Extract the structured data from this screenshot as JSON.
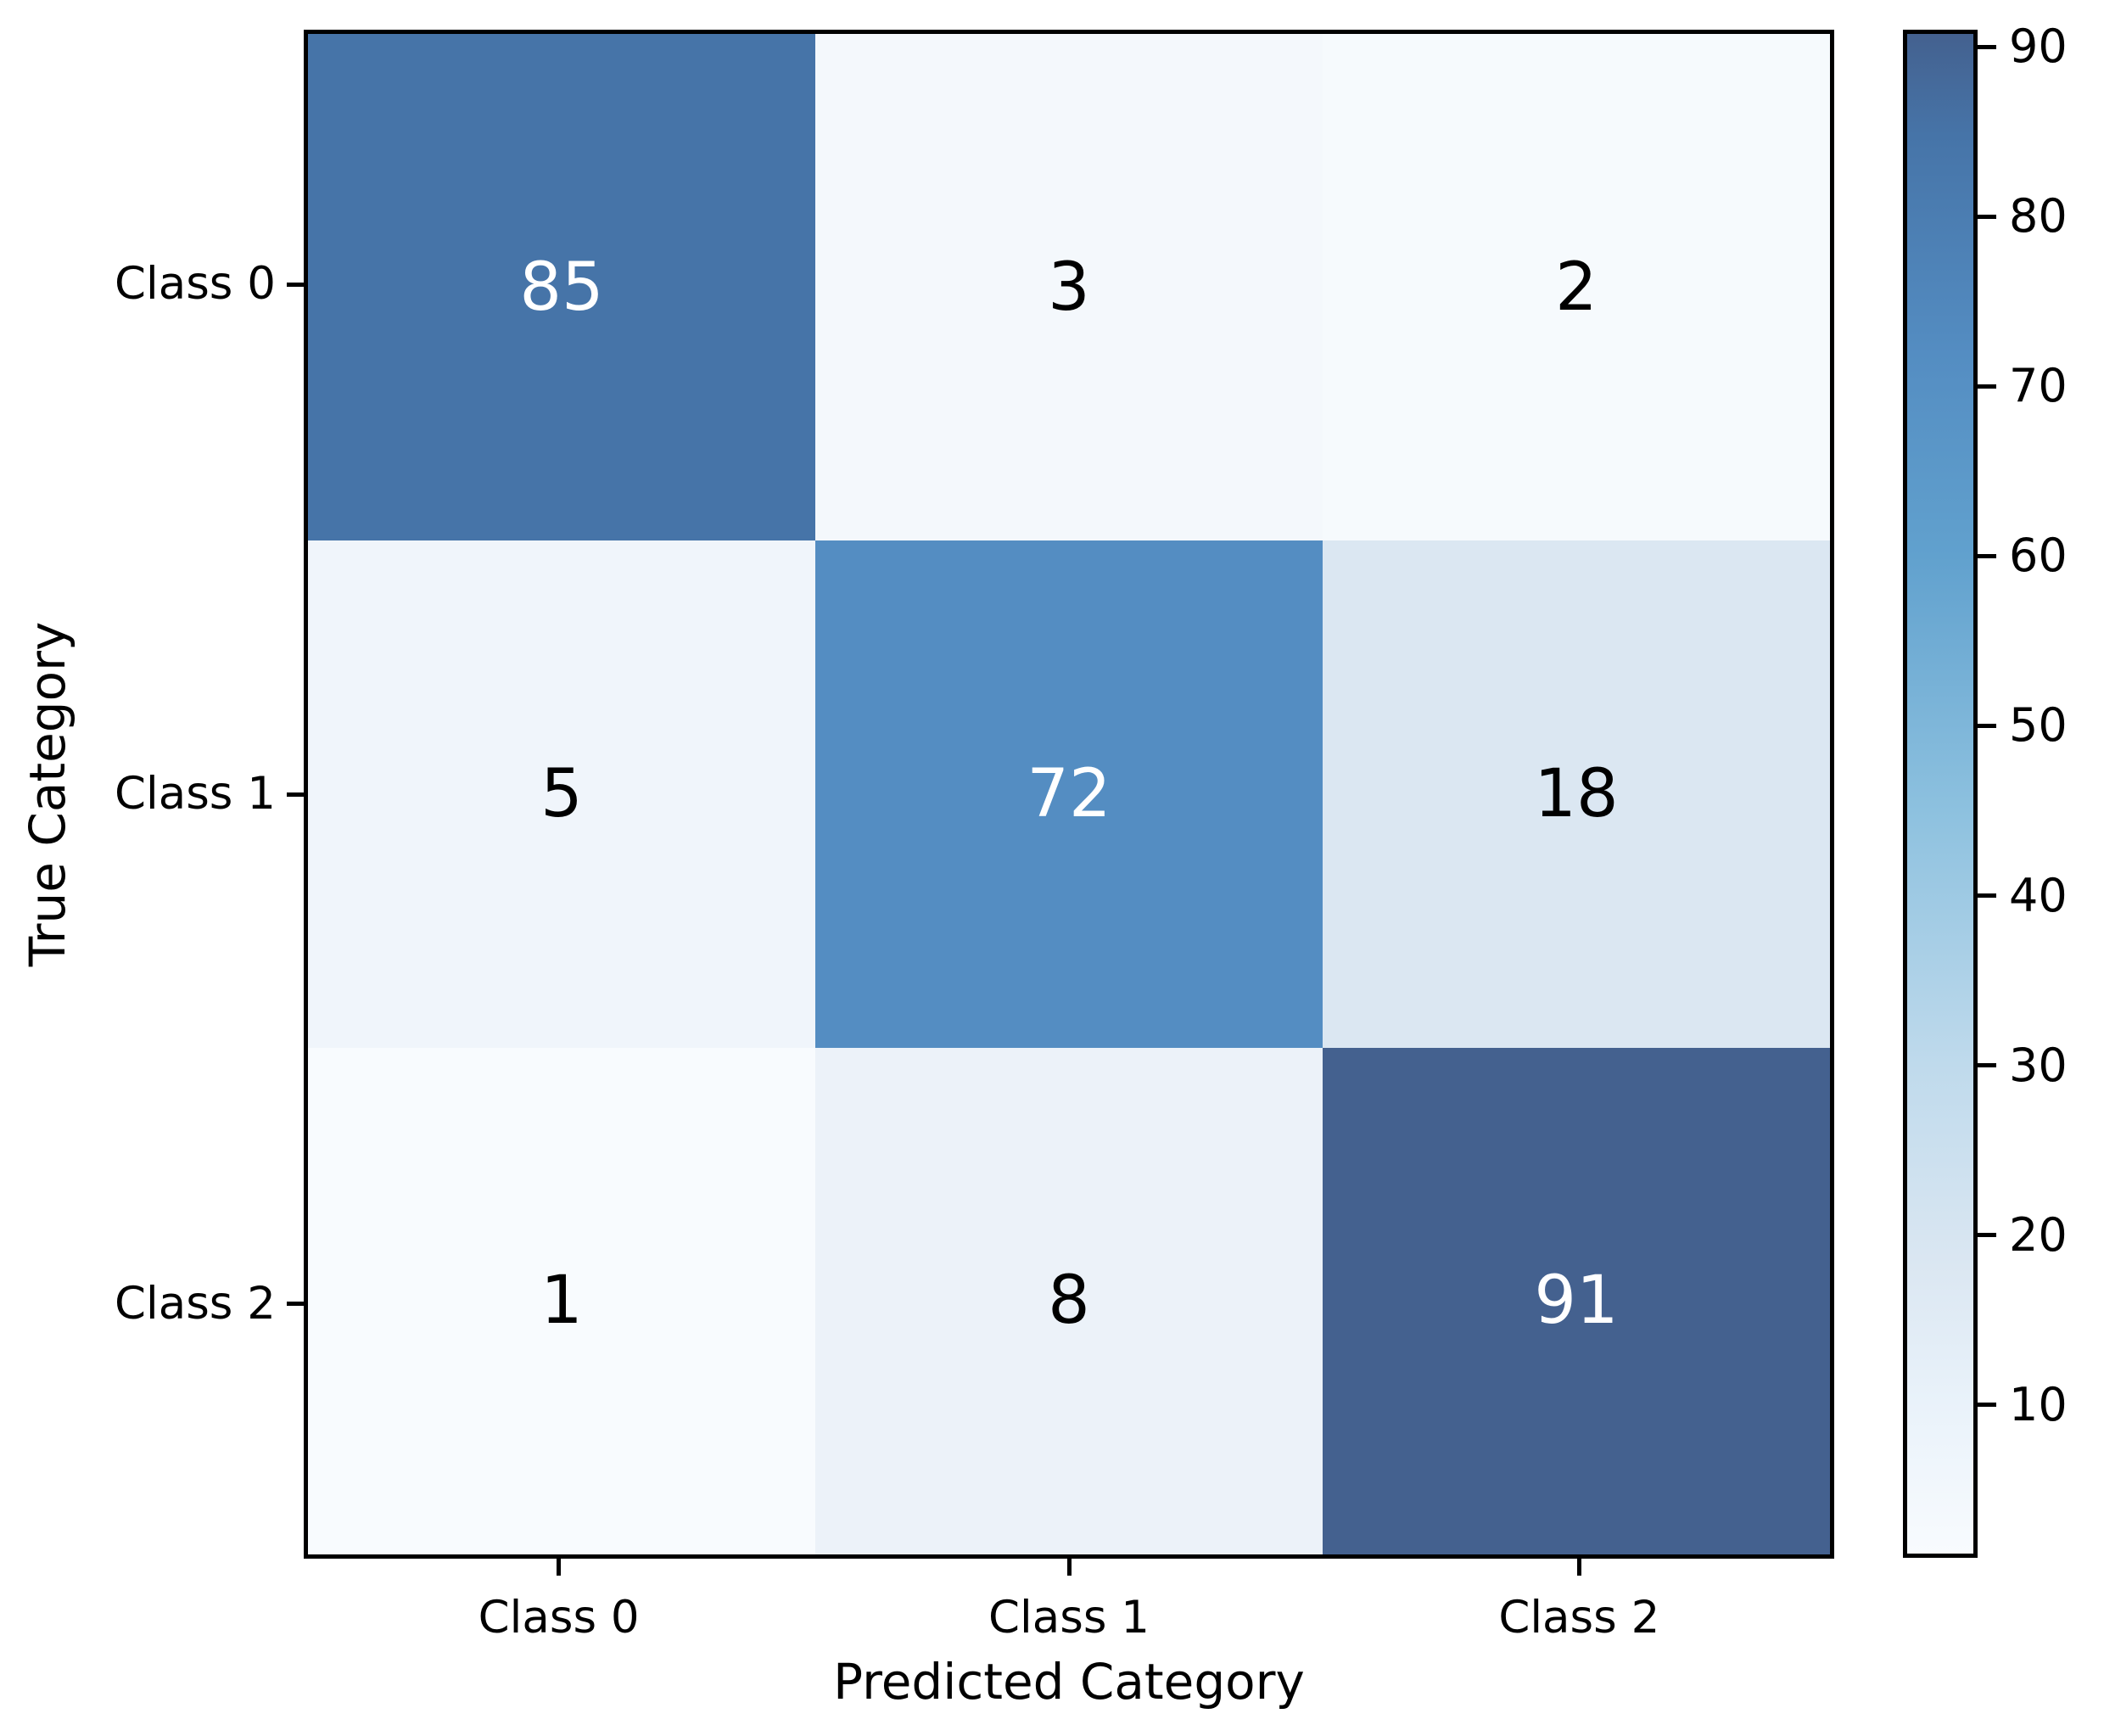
{
  "chart_data": {
    "type": "heatmap",
    "title": "",
    "xlabel": "Predicted Category",
    "ylabel": "True Category",
    "x_categories": [
      "Class 0",
      "Class 1",
      "Class 2"
    ],
    "y_categories": [
      "Class 0",
      "Class 1",
      "Class 2"
    ],
    "matrix": [
      [
        85,
        3,
        2
      ],
      [
        5,
        72,
        18
      ],
      [
        1,
        8,
        91
      ]
    ],
    "cell_colors": [
      [
        "#4674A8",
        "#F4F8FC",
        "#F6FAFD"
      ],
      [
        "#F0F5FB",
        "#548DC2",
        "#DBE7F2"
      ],
      [
        "#F8FBFE",
        "#ECF2F9",
        "#44618F"
      ]
    ],
    "cell_text_colors": [
      [
        "#FFFFFF",
        "#000000",
        "#000000"
      ],
      [
        "#000000",
        "#FFFFFF",
        "#000000"
      ],
      [
        "#000000",
        "#000000",
        "#FFFFFF"
      ]
    ],
    "grid": false,
    "legend_position": "none",
    "colorbar": {
      "vmin": 1,
      "vmax": 91,
      "tick_labels": [
        "10",
        "20",
        "30",
        "40",
        "50",
        "60",
        "70",
        "80",
        "90"
      ],
      "tick_values": [
        10,
        20,
        30,
        40,
        50,
        60,
        70,
        80,
        90
      ],
      "gradient_stops": [
        {
          "value": 1,
          "color": "#F8FBFE"
        },
        {
          "value": 10,
          "color": "#E9F2FA"
        },
        {
          "value": 18,
          "color": "#DBE7F2"
        },
        {
          "value": 30,
          "color": "#BFDAEC"
        },
        {
          "value": 45,
          "color": "#8DC1DF"
        },
        {
          "value": 60,
          "color": "#61A1CE"
        },
        {
          "value": 72,
          "color": "#548DC2"
        },
        {
          "value": 85,
          "color": "#4674A8"
        },
        {
          "value": 91,
          "color": "#44618F"
        }
      ]
    },
    "colors": {
      "axes_edge": "#000000",
      "tick_text": "#000000",
      "background": "#FFFFFF"
    }
  }
}
